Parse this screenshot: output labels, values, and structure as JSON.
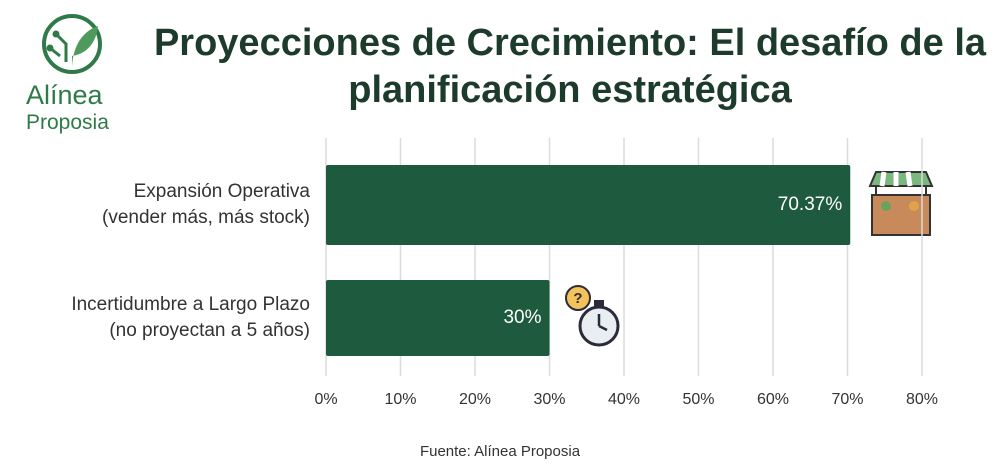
{
  "logo": {
    "name": "Alínea",
    "tagline": "Proposia"
  },
  "chart_data": {
    "type": "hbar",
    "title": "Proyecciones de Crecimiento: El desafío de la planificación estratégica",
    "categories": [
      "Expansión Operativa\n(vender más, más stock)",
      "Incertidumbre a Largo Plazo\n(no proyectan a 5 años)"
    ],
    "values": [
      70.37,
      30
    ],
    "value_labels": [
      "70.37%",
      "30%"
    ],
    "color": "#1e5a3e",
    "xlim": [
      0,
      80
    ],
    "xticks": [
      {
        "value": 0,
        "label": "0%"
      },
      {
        "value": 10,
        "label": "10%"
      },
      {
        "value": 20,
        "label": "20%"
      },
      {
        "value": 30,
        "label": "30%"
      },
      {
        "value": 40,
        "label": "40%"
      },
      {
        "value": 50,
        "label": "50%"
      },
      {
        "value": 60,
        "label": "60%"
      },
      {
        "value": 70,
        "label": "70%"
      },
      {
        "value": 80,
        "label": "80%"
      }
    ],
    "grid": true,
    "source": "Fuente: Alínea Proposia"
  }
}
